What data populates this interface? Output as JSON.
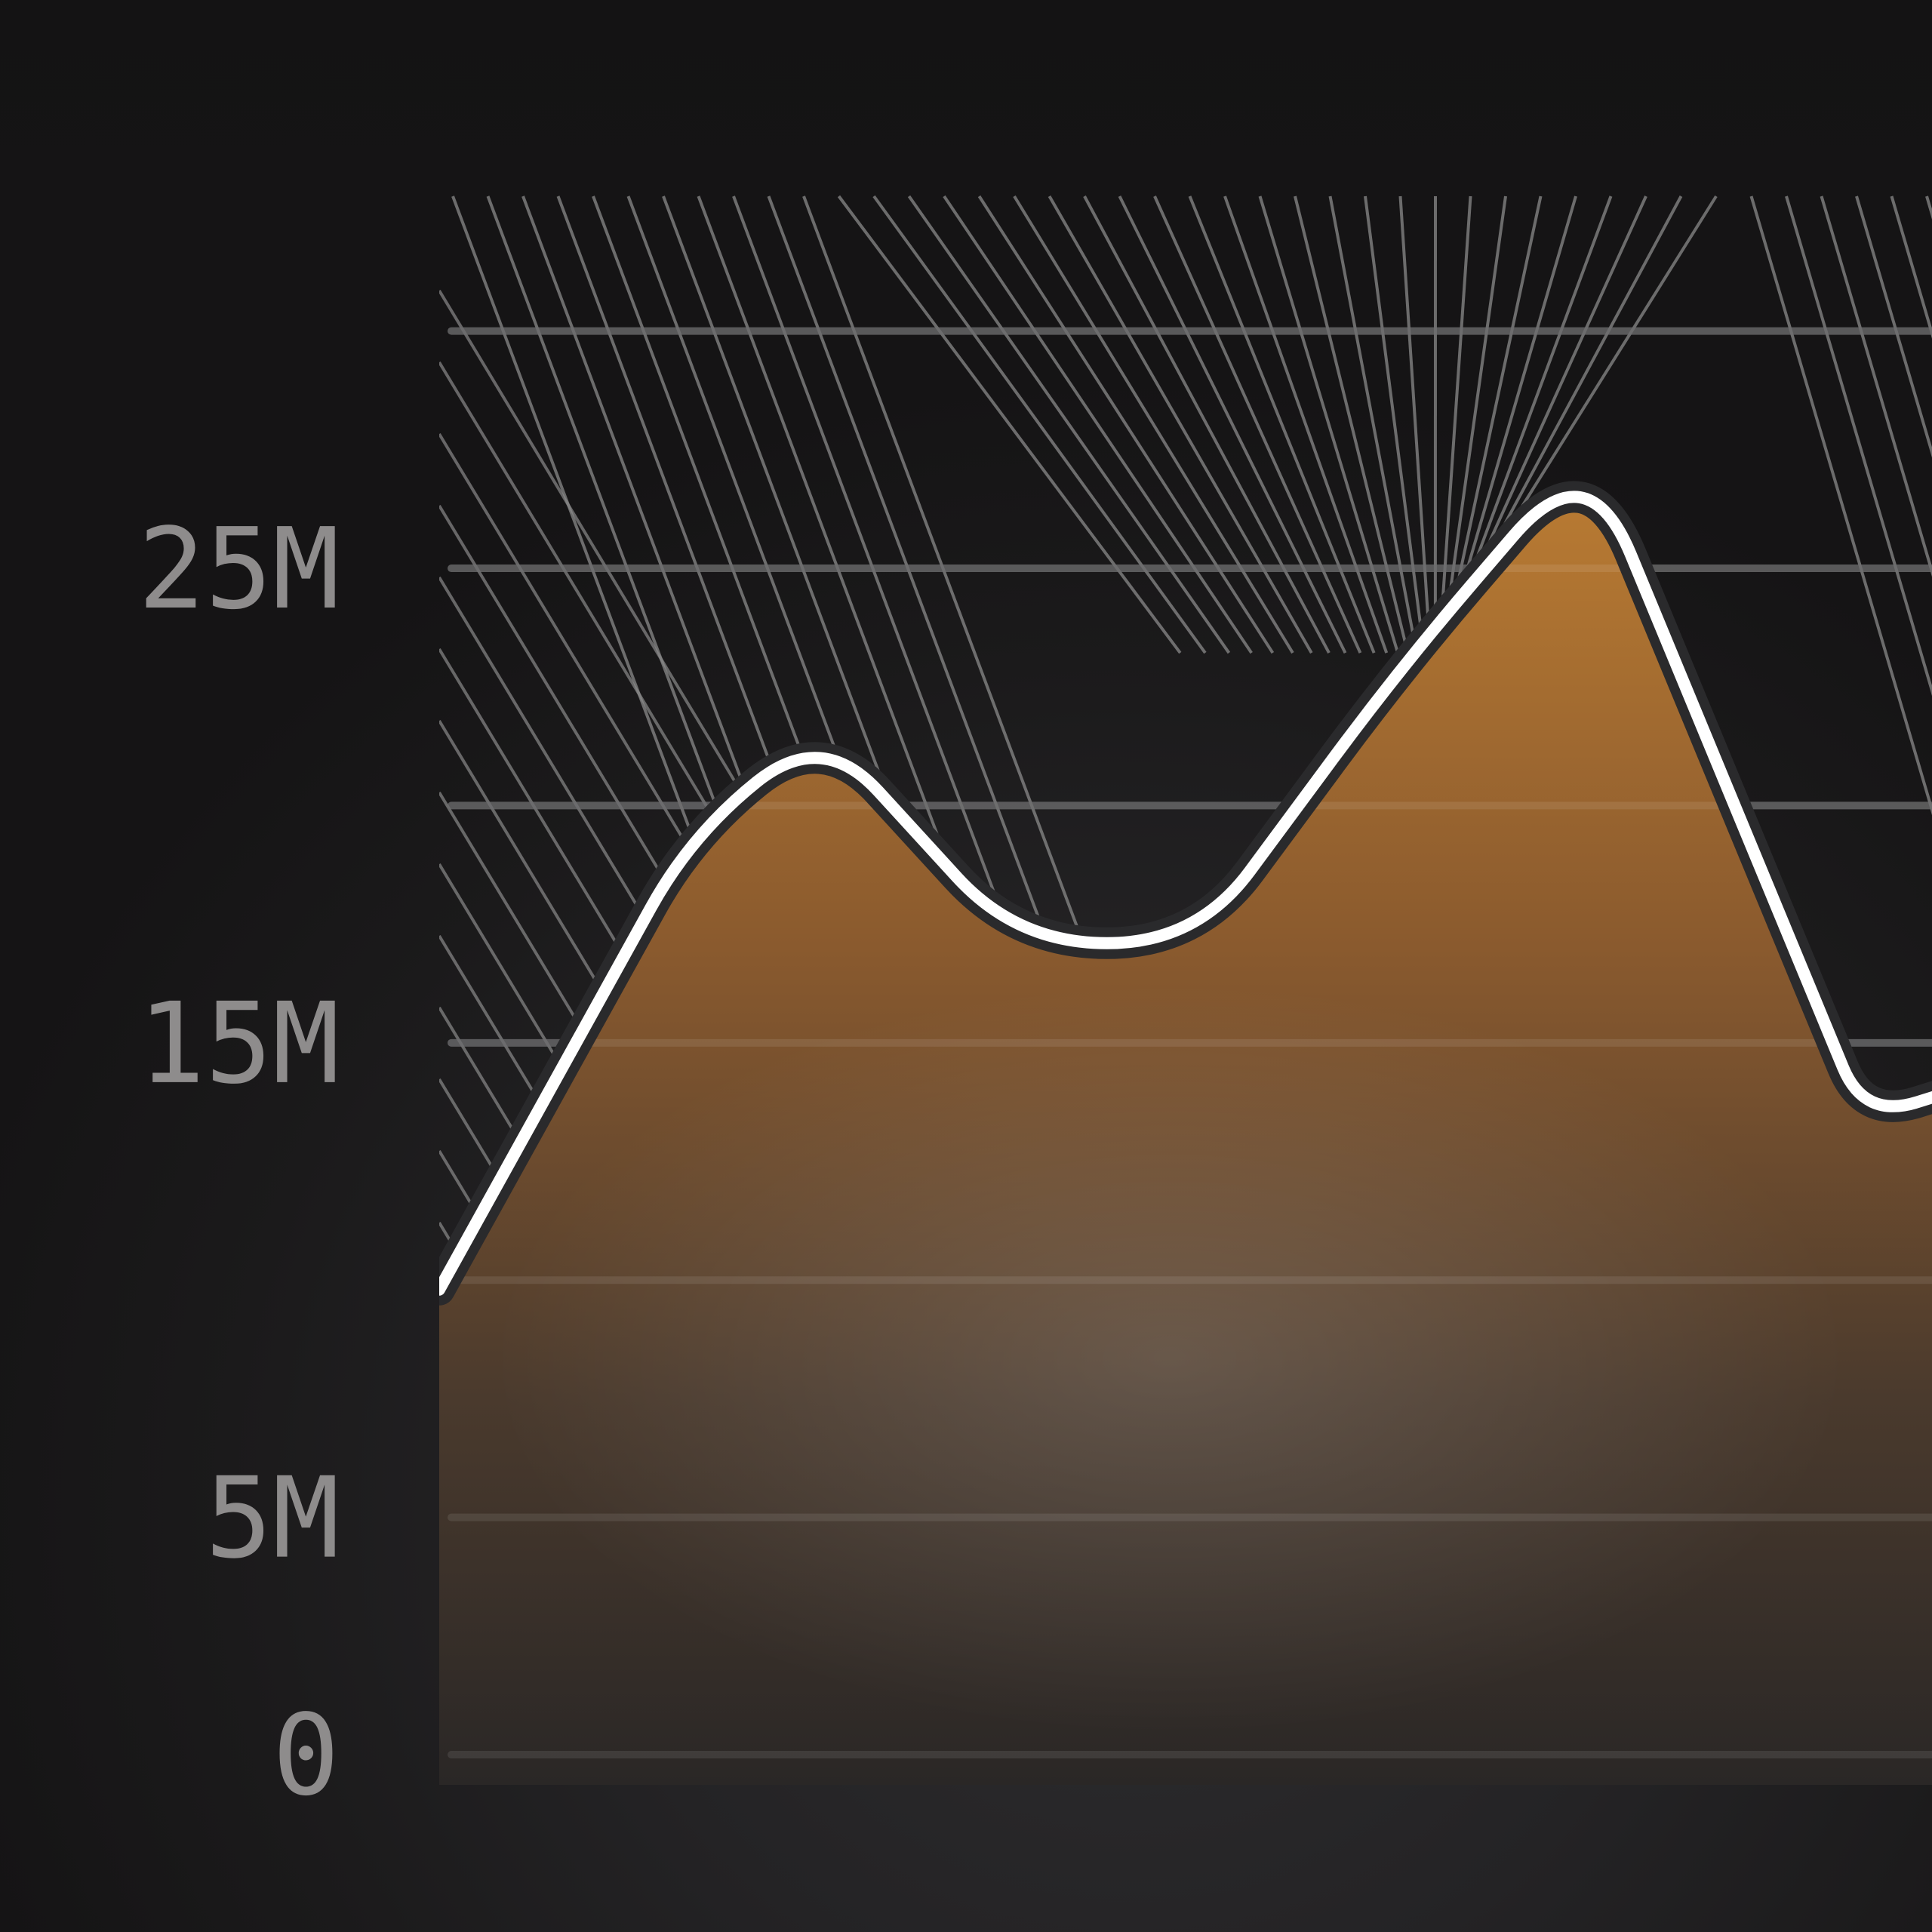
{
  "chart_data": {
    "type": "area",
    "title": "",
    "xlabel": "",
    "ylabel": "",
    "ylim": [
      0,
      33
    ],
    "y_ticks": [
      {
        "value": 0,
        "label": "0"
      },
      {
        "value": 5,
        "label": "5M"
      },
      {
        "value": 15,
        "label": "15M"
      },
      {
        "value": 25,
        "label": "25M"
      }
    ],
    "gridlines": [
      0,
      5,
      10,
      15,
      20,
      25,
      30
    ],
    "x": [
      0,
      1,
      2,
      3,
      4,
      5,
      6,
      7,
      8,
      9,
      10
    ],
    "series": [
      {
        "values": [
          9.8,
          19.4,
          21.6,
          17.1,
          17.1,
          22.9,
          27.5,
          13.4,
          14.1
        ],
        "x": [
          0,
          1.55,
          2.35,
          3.55,
          4.65,
          5.9,
          7.05,
          8.75,
          9.4
        ]
      }
    ],
    "grid": true,
    "legend": "none",
    "colors": {
      "area_top": "#b87830",
      "area_bottom": "#2c2825",
      "line": "#ffffff",
      "line_halo": "#2a2a2c",
      "hatch": "#8a8a8a",
      "grid": "#4a4a4c"
    }
  }
}
